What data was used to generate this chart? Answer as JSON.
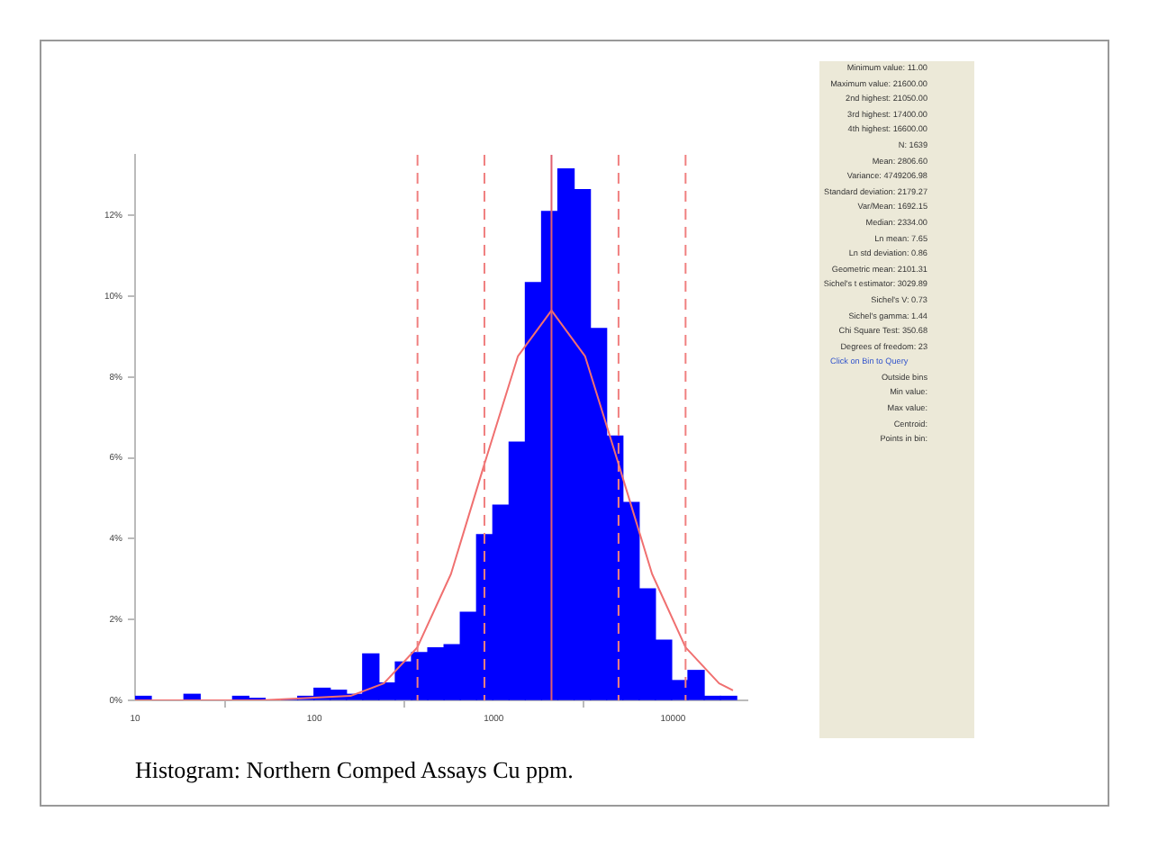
{
  "chart_data": {
    "type": "histogram",
    "bins": [
      10,
      12.3,
      15.2,
      18.7,
      23.1,
      28.4,
      35,
      43.1,
      53.2,
      65.5,
      80.7,
      99.5,
      122.6,
      151,
      186,
      229,
      283,
      348,
      429,
      529,
      651,
      803,
      989,
      1219,
      1502,
      1850,
      2280,
      2810,
      3462,
      4266,
      5256,
      6477,
      7981,
      9834,
      12117,
      14931,
      18398,
      22670
    ],
    "series": [
      {
        "color": "#0000ff",
        "values": [
          0.1,
          0,
          0,
          0.15,
          0,
          0,
          0.1,
          0.05,
          null,
          0,
          0.1,
          0.3,
          0.25,
          0.15,
          1.15,
          0.43,
          0.95,
          1.18,
          1.3,
          1.38,
          2.18,
          4.1,
          4.83,
          6.39,
          10.34,
          12.1,
          13.15,
          12.64,
          9.2,
          6.54,
          4.9,
          2.76,
          1.49,
          0.49,
          0.74,
          0.1,
          0.1
        ]
      },
      {
        "type": "line",
        "color": "#f07070",
        "x": [
          10,
          50,
          159,
          244,
          375,
          578,
          888,
          1366,
          2101,
          3231,
          4970,
          7643,
          11755,
          18081,
          21600
        ],
        "values": [
          0,
          0,
          0.11,
          0.42,
          1.31,
          3.13,
          5.85,
          8.52,
          9.65,
          8.52,
          5.85,
          3.13,
          1.31,
          0.42,
          0.25
        ]
      }
    ],
    "log": "x",
    "xlim": [
      10,
      26000
    ],
    "xticks": [
      10,
      100,
      1000,
      10000
    ],
    "ylim": [
      0,
      13.5
    ],
    "yticks": [
      {
        "value": 0,
        "label": "0%"
      },
      {
        "value": 2,
        "label": "2%"
      },
      {
        "value": 4,
        "label": "4%"
      },
      {
        "value": 6,
        "label": "6%"
      },
      {
        "value": 8,
        "label": "8%"
      },
      {
        "value": 10,
        "label": "10%"
      },
      {
        "value": 12,
        "label": "12%"
      }
    ],
    "grid": false,
    "legend": false,
    "marker": "none",
    "ref_lines": [
      {
        "axis": "x",
        "value": 376,
        "color": "#f08080",
        "line_style": "dashed"
      },
      {
        "axis": "x",
        "value": 888,
        "color": "#f08080",
        "line_style": "dashed"
      },
      {
        "axis": "x",
        "value": 2101,
        "color": "#e06070",
        "line_style": "solid"
      },
      {
        "axis": "x",
        "value": 4970,
        "color": "#f08080",
        "line_style": "dashed"
      },
      {
        "axis": "x",
        "value": 11755,
        "color": "#f08080",
        "line_style": "dashed"
      }
    ],
    "annotations": [
      "Minimum value: 11.00",
      "Maximum value: 21600.00",
      "2nd highest: 21050.00",
      "3rd highest: 17400.00",
      "4th highest: 16600.00",
      "N: 1639",
      "Mean: 2806.60",
      "Variance: 4749206.98",
      "Standard deviation: 2179.27",
      "Var/Mean: 1692.15",
      "Median: 2334.00",
      "Ln mean: 7.65",
      "Ln std deviation: 0.86",
      "Geometric mean: 2101.31",
      "Sichel's t estimator: 3029.89",
      "Sichel's V: 0.73",
      "Sichel's gamma: 1.44",
      "Chi Square Test: 350.68",
      "Degrees of freedom: 23",
      "Click on Bin to Query",
      "Outside bins",
      "Min value:",
      "Max value:",
      "Centroid:",
      "Points in bin:",
      "Histogram: Northern Comped Assays Cu ppm."
    ]
  }
}
